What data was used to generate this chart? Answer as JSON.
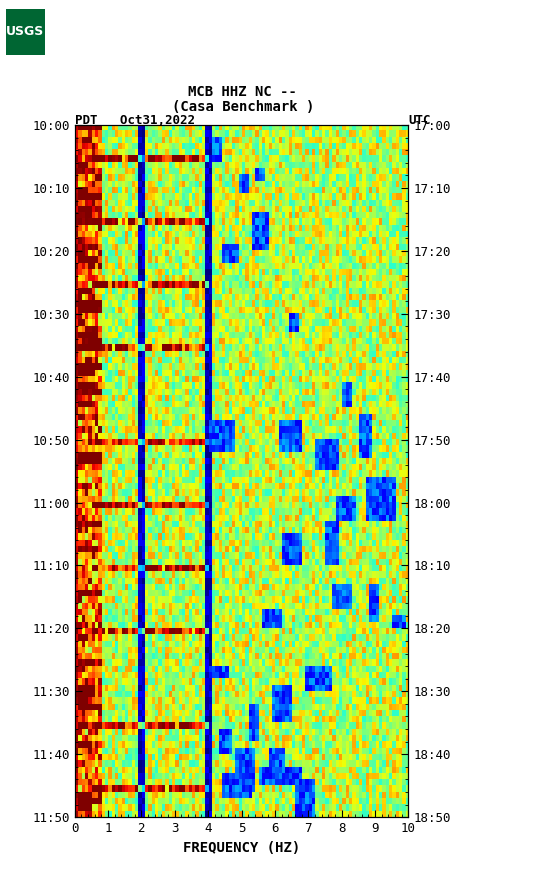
{
  "title_line1": "MCB HHZ NC --",
  "title_line2": "(Casa Benchmark )",
  "left_label": "PDT",
  "date_label": "Oct31,2022",
  "right_label": "UTC",
  "xlabel": "FREQUENCY (HZ)",
  "freq_min": 0,
  "freq_max": 10,
  "freq_ticks": [
    0,
    1,
    2,
    3,
    4,
    5,
    6,
    7,
    8,
    9,
    10
  ],
  "time_ticks_left": [
    "10:00",
    "10:10",
    "10:20",
    "10:30",
    "10:40",
    "10:50",
    "11:00",
    "11:10",
    "11:20",
    "11:30",
    "11:40",
    "11:50"
  ],
  "time_ticks_right": [
    "17:00",
    "17:10",
    "17:20",
    "17:30",
    "17:40",
    "17:50",
    "18:00",
    "18:10",
    "18:20",
    "18:30",
    "18:40",
    "18:50"
  ],
  "n_time": 110,
  "n_freq": 100,
  "background_color": "#ffffff",
  "colormap": "jet",
  "fig_width": 5.52,
  "fig_height": 8.93,
  "dpi": 100,
  "logo_color": "#006633",
  "tick_label_fontsize": 9,
  "axis_label_fontsize": 10
}
